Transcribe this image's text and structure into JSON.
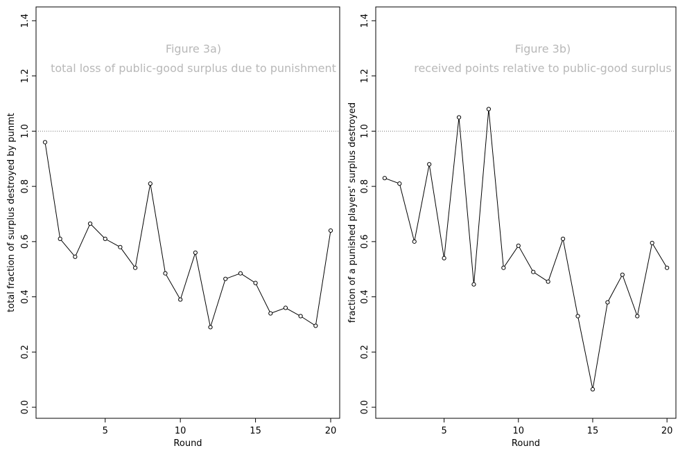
{
  "chart_data": [
    {
      "type": "line",
      "xlabel": "Round",
      "ylabel": "total fraction of surplus destroyed by punmt",
      "annotations": [
        "Figure 3a)",
        "total loss of public-good surplus due to punishment"
      ],
      "x": [
        1,
        2,
        3,
        4,
        5,
        6,
        7,
        8,
        9,
        10,
        11,
        12,
        13,
        14,
        15,
        16,
        17,
        18,
        19,
        20
      ],
      "values": [
        0.96,
        0.61,
        0.545,
        0.665,
        0.61,
        0.58,
        0.505,
        0.81,
        0.485,
        0.39,
        0.56,
        0.29,
        0.465,
        0.485,
        0.45,
        0.34,
        0.36,
        0.33,
        0.295,
        0.64
      ],
      "xticks": [
        "5",
        "10",
        "15",
        "20"
      ],
      "yticks": [
        "0.0",
        "0.2",
        "0.4",
        "0.6",
        "0.8",
        "1.0",
        "1.2",
        "1.4"
      ],
      "xlim": [
        0.4,
        20.6
      ],
      "ylim": [
        -0.04,
        1.45
      ],
      "reference_line_y": 1.0,
      "grid": false
    },
    {
      "type": "line",
      "xlabel": "Round",
      "ylabel": "fraction of a punished players' surplus destroyed",
      "annotations": [
        "Figure 3b)",
        "received points relative to public-good surplus"
      ],
      "x": [
        1,
        2,
        3,
        4,
        5,
        6,
        7,
        8,
        9,
        10,
        11,
        12,
        13,
        14,
        15,
        16,
        17,
        18,
        19,
        20
      ],
      "values": [
        0.83,
        0.81,
        0.6,
        0.88,
        0.54,
        1.05,
        0.445,
        1.08,
        0.505,
        0.585,
        0.49,
        0.455,
        0.61,
        0.33,
        0.065,
        0.38,
        0.48,
        0.33,
        0.595,
        0.505
      ],
      "xticks": [
        "5",
        "10",
        "15",
        "20"
      ],
      "yticks": [
        "0.0",
        "0.2",
        "0.4",
        "0.6",
        "0.8",
        "1.0",
        "1.2",
        "1.4"
      ],
      "xlim": [
        0.4,
        20.6
      ],
      "ylim": [
        -0.04,
        1.45
      ],
      "reference_line_y": 1.0,
      "grid": false
    }
  ]
}
